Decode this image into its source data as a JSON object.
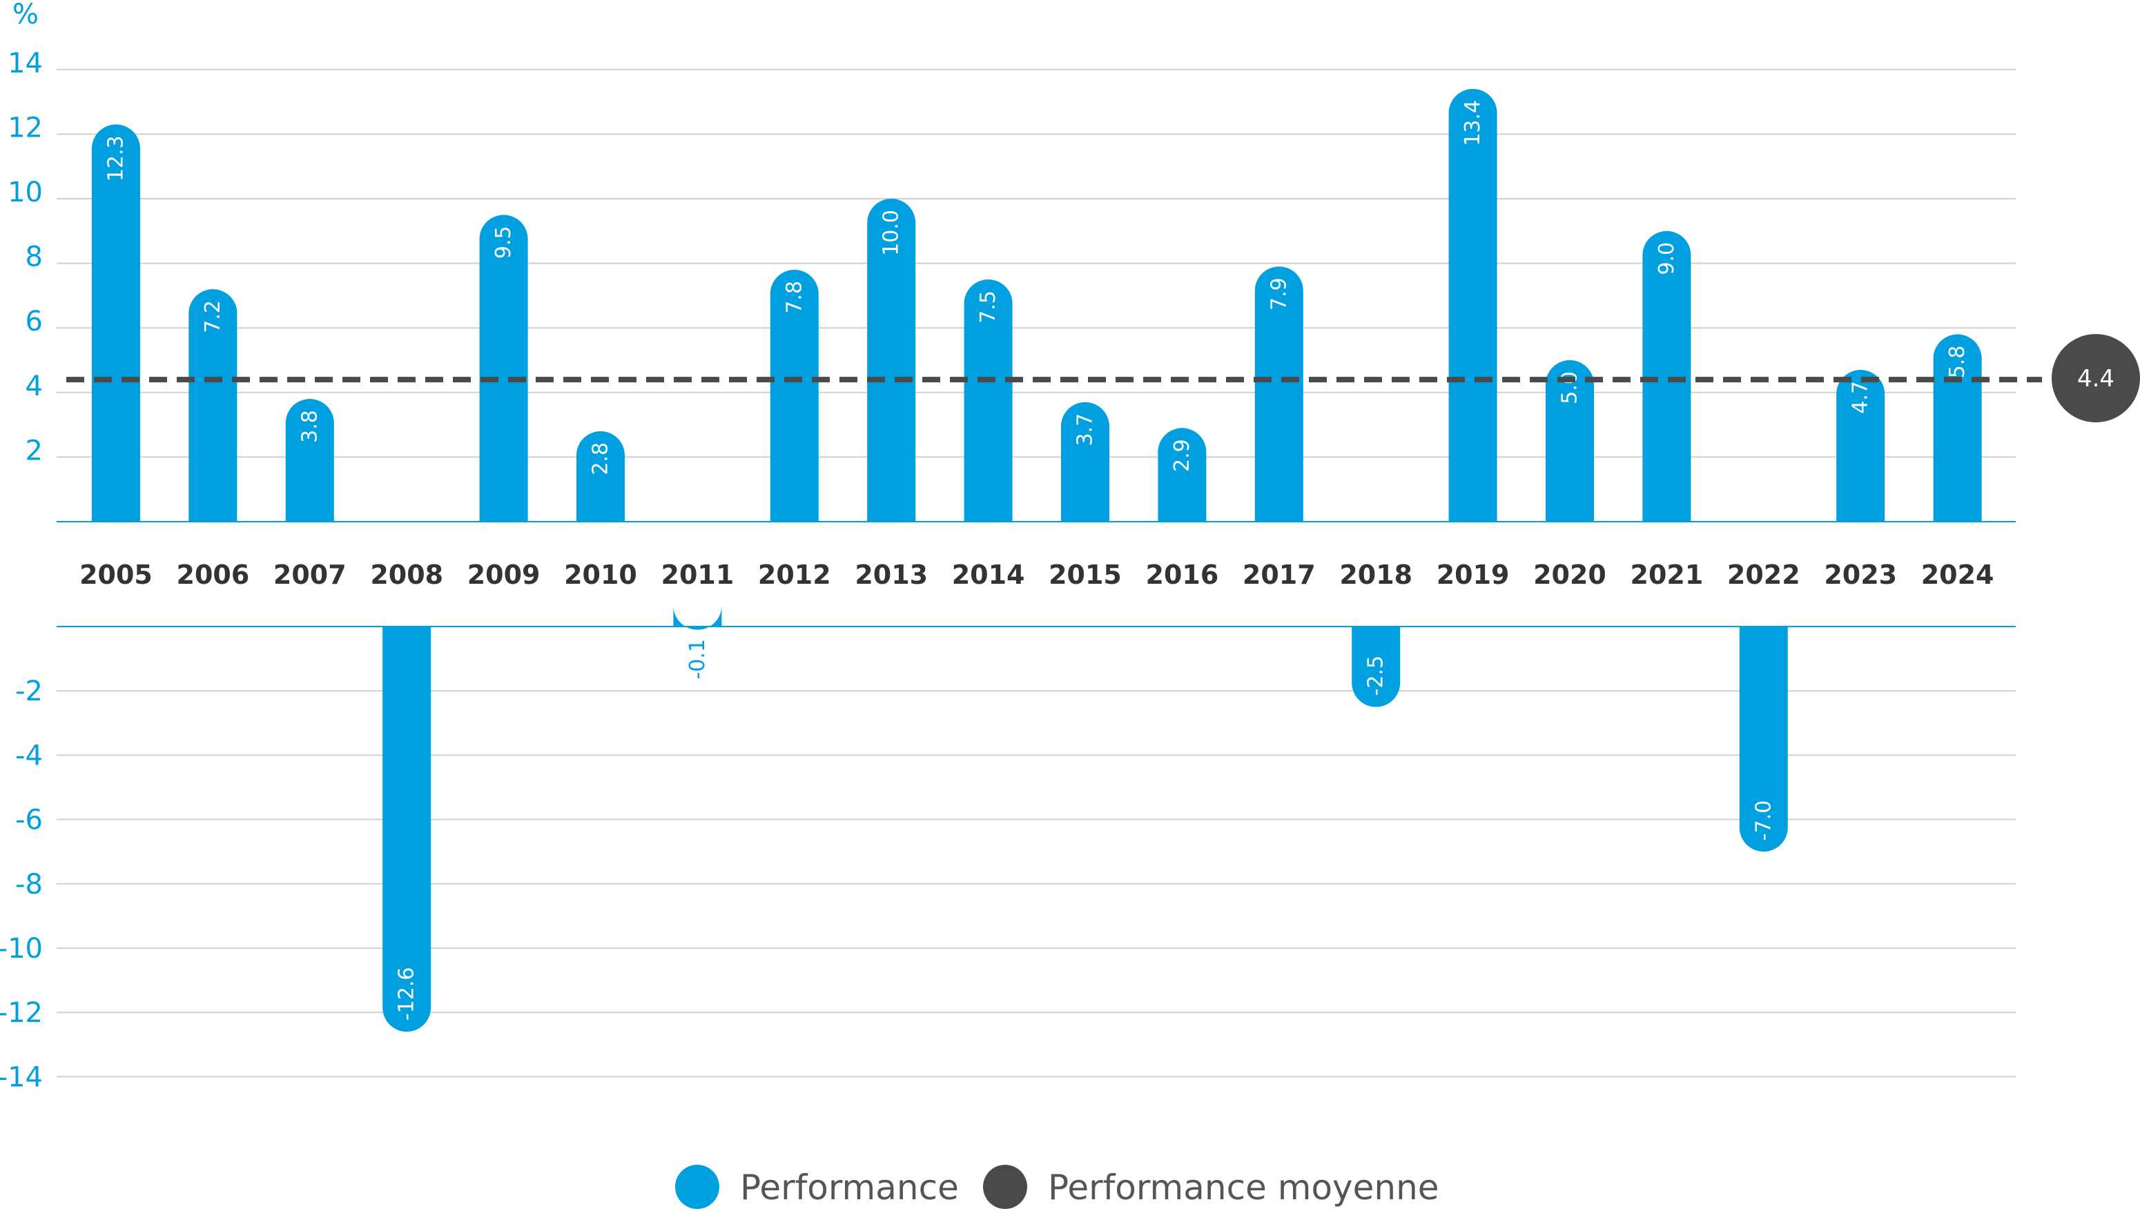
{
  "colors": {
    "bar": "#00a0e0",
    "average": "#4a4a4a",
    "grid": "#d0d0d0",
    "axis": "#00a0e0",
    "tick_text": "#00a0e0",
    "year_text": "#333333"
  },
  "chart_data": {
    "type": "bar",
    "unit_label": "%",
    "categories": [
      "2005",
      "2006",
      "2007",
      "2008",
      "2009",
      "2010",
      "2011",
      "2012",
      "2013",
      "2014",
      "2015",
      "2016",
      "2017",
      "2018",
      "2019",
      "2020",
      "2021",
      "2022",
      "2023",
      "2024"
    ],
    "series": [
      {
        "name": "Performance",
        "values": [
          12.3,
          7.2,
          3.8,
          -12.6,
          9.5,
          2.8,
          -0.1,
          7.8,
          10.0,
          7.5,
          3.7,
          2.9,
          7.9,
          -2.5,
          13.4,
          5.0,
          9.0,
          -7.0,
          4.7,
          5.8
        ],
        "labels": [
          "12.3",
          "7.2",
          "3.8",
          "-12.6",
          "9.5",
          "2.8",
          "-0.1",
          "7.8",
          "10.0",
          "7.5",
          "3.7",
          "2.9",
          "7.9",
          "-2.5",
          "13.4",
          "5.0",
          "9.0",
          "-7.0",
          "4.7",
          "5.8"
        ]
      }
    ],
    "average": {
      "name": "Performance moyenne",
      "value": 4.4,
      "label": "4.4"
    },
    "yticks_positive": [
      "14",
      "12",
      "10",
      "8",
      "6",
      "4",
      "2"
    ],
    "yticks_negative": [
      "-2",
      "-4",
      "-6",
      "-8",
      "-10",
      "-12",
      "-14"
    ],
    "ylim": [
      -14,
      14
    ],
    "grid": true,
    "legend": {
      "position": "bottom",
      "items": [
        "Performance",
        "Performance moyenne"
      ]
    }
  }
}
